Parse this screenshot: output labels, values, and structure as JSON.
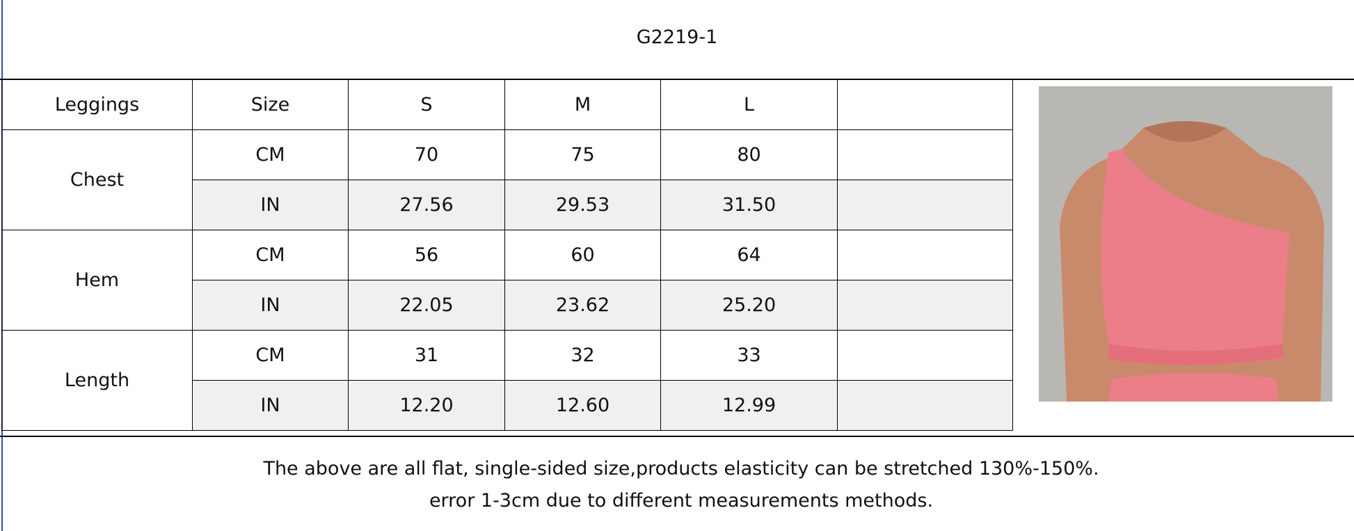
{
  "title": "G2219-1",
  "table": {
    "header": [
      "Leggings",
      "Size",
      "S",
      "M",
      "L"
    ],
    "groups": [
      {
        "label": "Chest",
        "rows": [
          [
            "CM",
            "70",
            "75",
            "80"
          ],
          [
            "IN",
            "27.56",
            "29.53",
            "31.50"
          ]
        ]
      },
      {
        "label": "Hem",
        "rows": [
          [
            "CM",
            "56",
            "60",
            "64"
          ],
          [
            "IN",
            "22.05",
            "23.62",
            "25.20"
          ]
        ]
      },
      {
        "label": "Length",
        "rows": [
          [
            "CM",
            "31",
            "32",
            "33"
          ],
          [
            "IN",
            "12.20",
            "12.60",
            "12.99"
          ]
        ]
      }
    ]
  },
  "notes": [
    "The above are all flat, single-sided size,products elasticity can be stretched 130%-150%.",
    "error 1-3cm due to different measurements methods."
  ]
}
